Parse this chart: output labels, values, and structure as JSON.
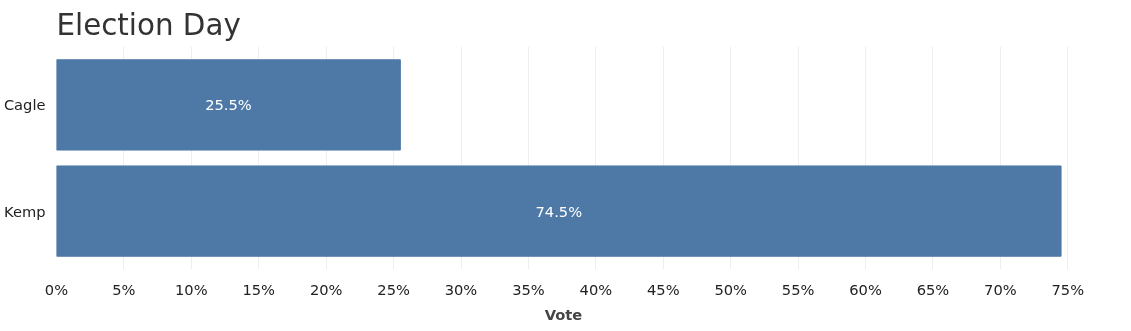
{
  "chart_data": {
    "type": "bar",
    "orientation": "horizontal",
    "title": "Election Day",
    "xlabel": "Vote",
    "categories": [
      "Cagle",
      "Kemp"
    ],
    "values": [
      25.5,
      74.5
    ],
    "color": "#4e79a7",
    "value_labels": [
      "25.5%",
      "74.5%"
    ],
    "xlim": [
      0,
      75.2
    ],
    "xticks": [
      {
        "value": 0,
        "label": "0%"
      },
      {
        "value": 5,
        "label": "5%"
      },
      {
        "value": 10,
        "label": "10%"
      },
      {
        "value": 15,
        "label": "15%"
      },
      {
        "value": 20,
        "label": "20%"
      },
      {
        "value": 25,
        "label": "25%"
      },
      {
        "value": 30,
        "label": "30%"
      },
      {
        "value": 35,
        "label": "35%"
      },
      {
        "value": 40,
        "label": "40%"
      },
      {
        "value": 45,
        "label": "45%"
      },
      {
        "value": 50,
        "label": "50%"
      },
      {
        "value": 55,
        "label": "55%"
      },
      {
        "value": 60,
        "label": "60%"
      },
      {
        "value": 65,
        "label": "65%"
      },
      {
        "value": 70,
        "label": "70%"
      },
      {
        "value": 75,
        "label": "75%"
      }
    ],
    "grid": "x"
  }
}
